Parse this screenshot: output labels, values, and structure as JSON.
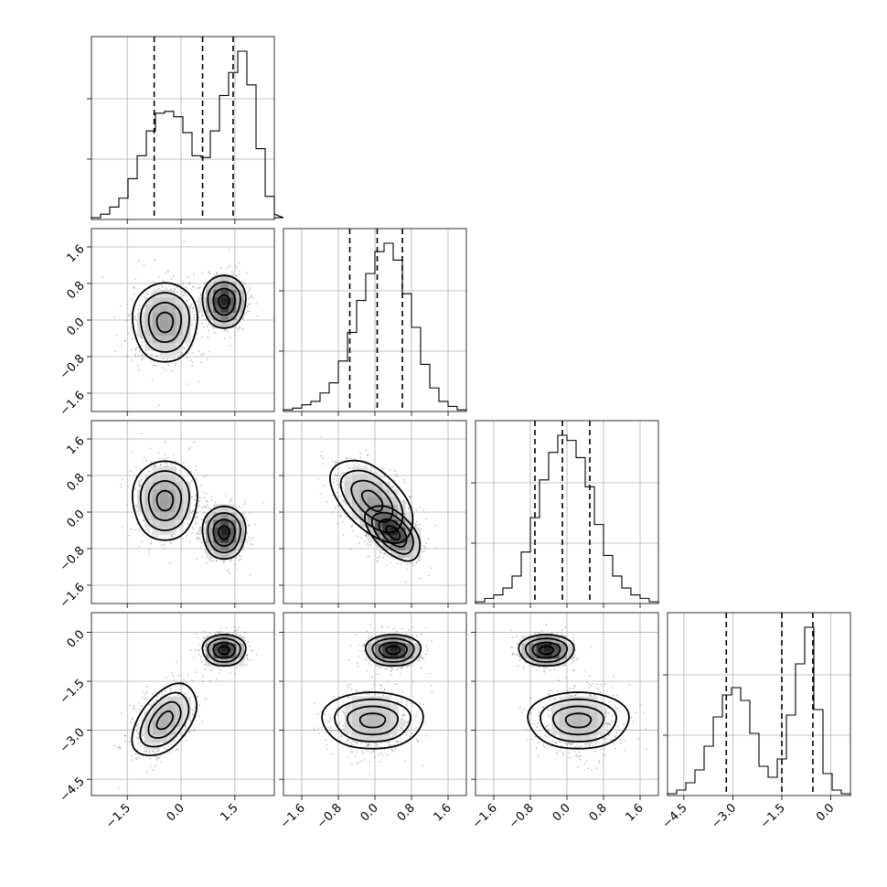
{
  "chart_data": {
    "type": "corner",
    "n_params": 4,
    "ticks": [
      {
        "values": [
          -1.5,
          0.0,
          1.5
        ],
        "labels": [
          "−1.5",
          "0.0",
          "1.5"
        ]
      },
      {
        "values": [
          -1.6,
          -0.8,
          0.0,
          0.8,
          1.6
        ],
        "labels": [
          "−1.6",
          "−0.8",
          "0.0",
          "0.8",
          "1.6"
        ]
      },
      {
        "values": [
          -1.6,
          -0.8,
          0.0,
          0.8,
          1.6
        ],
        "labels": [
          "−1.6",
          "−0.8",
          "0.0",
          "0.8",
          "1.6"
        ]
      },
      {
        "values": [
          -4.5,
          -3.0,
          -1.5,
          0.0
        ],
        "labels": [
          "−4.5",
          "−3.0",
          "−1.5",
          "0.0"
        ]
      }
    ],
    "ranges": [
      [
        -2.5,
        2.6
      ],
      [
        -2.0,
        2.0
      ],
      [
        -2.0,
        2.0
      ],
      [
        -5.0,
        0.6
      ]
    ],
    "grid": true,
    "histograms": [
      {
        "edges_from": -2.5,
        "bin_width": 0.255,
        "counts": [
          0.01,
          0.03,
          0.07,
          0.12,
          0.23,
          0.36,
          0.5,
          0.6,
          0.61,
          0.58,
          0.49,
          0.36,
          0.35,
          0.5,
          0.7,
          0.83,
          0.95,
          0.76,
          0.4,
          0.13,
          0.03,
          0.01
        ],
        "quantiles": [
          -0.75,
          0.6,
          1.45
        ]
      },
      {
        "edges_from": -2.0,
        "bin_width": 0.2,
        "counts": [
          0.01,
          0.02,
          0.04,
          0.06,
          0.11,
          0.17,
          0.3,
          0.47,
          0.66,
          0.82,
          0.95,
          1.0,
          0.9,
          0.7,
          0.5,
          0.28,
          0.14,
          0.06,
          0.03,
          0.01
        ],
        "quantiles": [
          -0.55,
          0.05,
          0.6
        ]
      },
      {
        "edges_from": -2.0,
        "bin_width": 0.2,
        "counts": [
          0.01,
          0.03,
          0.05,
          0.09,
          0.16,
          0.3,
          0.5,
          0.72,
          0.88,
          0.98,
          0.95,
          0.85,
          0.68,
          0.46,
          0.28,
          0.16,
          0.09,
          0.05,
          0.03,
          0.01
        ],
        "quantiles": [
          -0.7,
          -0.1,
          0.5
        ]
      },
      {
        "edges_from": -5.0,
        "bin_width": 0.28,
        "counts": [
          0.01,
          0.03,
          0.07,
          0.14,
          0.27,
          0.43,
          0.55,
          0.59,
          0.52,
          0.34,
          0.16,
          0.1,
          0.2,
          0.44,
          0.72,
          0.92,
          0.47,
          0.12,
          0.03,
          0.01
        ],
        "quantiles": [
          -3.2,
          -1.5,
          -0.55
        ]
      }
    ],
    "modes": [
      {
        "means": [
          -0.45,
          -0.05,
          0.25,
          -2.7
        ],
        "sd": [
          0.45,
          0.45,
          0.45,
          0.55
        ],
        "corr": [
          [
            1,
            0,
            0,
            0.45
          ],
          [
            0,
            1,
            -0.5,
            0
          ],
          [
            0,
            -0.5,
            1,
            0
          ],
          [
            0.45,
            0,
            0,
            1
          ]
        ],
        "weight": 0.5
      },
      {
        "means": [
          1.2,
          0.4,
          -0.45,
          -0.55
        ],
        "sd": [
          0.3,
          0.3,
          0.3,
          0.25
        ],
        "corr": [
          [
            1,
            0,
            0,
            0
          ],
          [
            0,
            1,
            -0.5,
            0
          ],
          [
            0,
            -0.5,
            1,
            0
          ],
          [
            0,
            0,
            0,
            1
          ]
        ],
        "weight": 0.5
      }
    ]
  }
}
